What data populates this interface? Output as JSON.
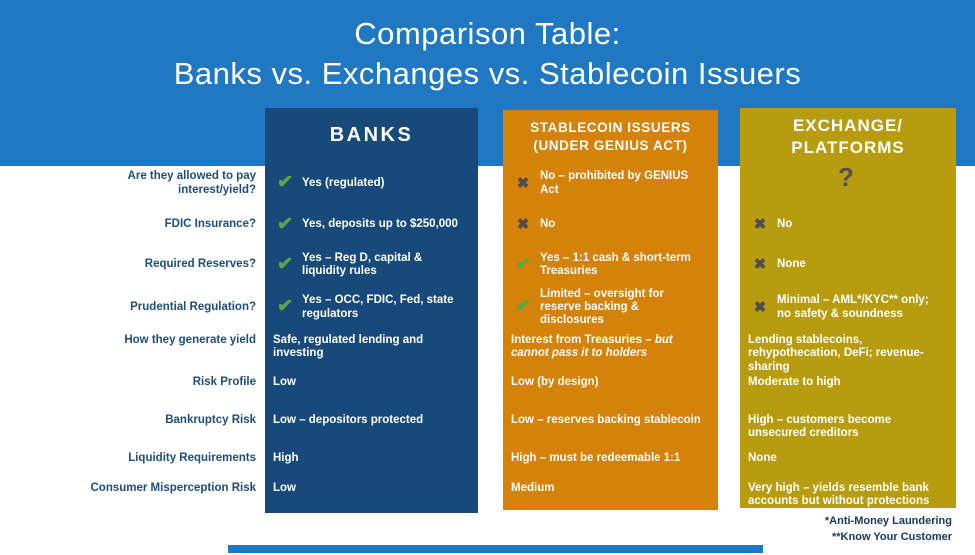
{
  "title": {
    "line1": "Comparison Table:",
    "line2": "Banks vs. Exchanges vs. Stablecoin Issuers"
  },
  "columns": {
    "banks": {
      "header": "BANKS"
    },
    "stablecoin": {
      "header_line1": "STABLECOIN ISSUERS",
      "header_line2": "(UNDER GENIUS ACT)"
    },
    "exchange": {
      "header_line1": "EXCHANGE/",
      "header_line2": "PLATFORMS"
    }
  },
  "icons": {
    "check": "✔",
    "cross": "✖",
    "question": "?"
  },
  "rows": [
    {
      "label": "Are they allowed to pay interest/yield?",
      "banks": "Yes (regulated)",
      "stablecoin": "No – prohibited by GENIUS Act",
      "exchange": ""
    },
    {
      "label": "FDIC Insurance?",
      "banks": "Yes, deposits up to $250,000",
      "stablecoin": "No",
      "exchange": "No"
    },
    {
      "label": "Required Reserves?",
      "banks": "Yes – Reg D, capital & liquidity rules",
      "stablecoin": "Yes – 1:1 cash & short-term Treasuries",
      "exchange": "None"
    },
    {
      "label": "Prudential Regulation?",
      "banks": "Yes – OCC, FDIC, Fed, state regulators",
      "stablecoin": "Limited – oversight for reserve backing & disclosures",
      "exchange": "Minimal – AML*/KYC** only; no safety & soundness"
    },
    {
      "label": "How they generate yield",
      "banks": "Safe, regulated lending and investing",
      "stablecoin": "Interest from Treasuries – ",
      "stablecoin_italic": "but cannot pass it to holders",
      "exchange": "Lending stablecoins, rehypothecation, DeFi; revenue-sharing"
    },
    {
      "label": "Risk Profile",
      "banks": "Low",
      "stablecoin": "Low (by design)",
      "exchange": "Moderate to high"
    },
    {
      "label": "Bankruptcy Risk",
      "banks": "Low – depositors protected",
      "stablecoin": "Low – reserves backing stablecoin",
      "exchange": "High – customers become unsecured creditors"
    },
    {
      "label": "Liquidity Requirements",
      "banks": "High",
      "stablecoin": "High – must be redeemable 1:1",
      "exchange": "None"
    },
    {
      "label": "Consumer Misperception Risk",
      "banks": "Low",
      "stablecoin": "Medium",
      "exchange": "Very high – yields resemble bank accounts but without protections"
    }
  ],
  "footnotes": {
    "line1": "*Anti-Money Laundering",
    "line2": "**Know Your Customer"
  },
  "colors": {
    "banner_blue": "#1F78C1",
    "banks_navy": "#17497B",
    "stablecoin_orange": "#D5820B",
    "exchange_gold": "#B89C10",
    "check_green": "#58A943",
    "cross_gray": "#4D4D4D",
    "label_navy": "#1E4D7B",
    "footnote_navy": "#17375E"
  }
}
